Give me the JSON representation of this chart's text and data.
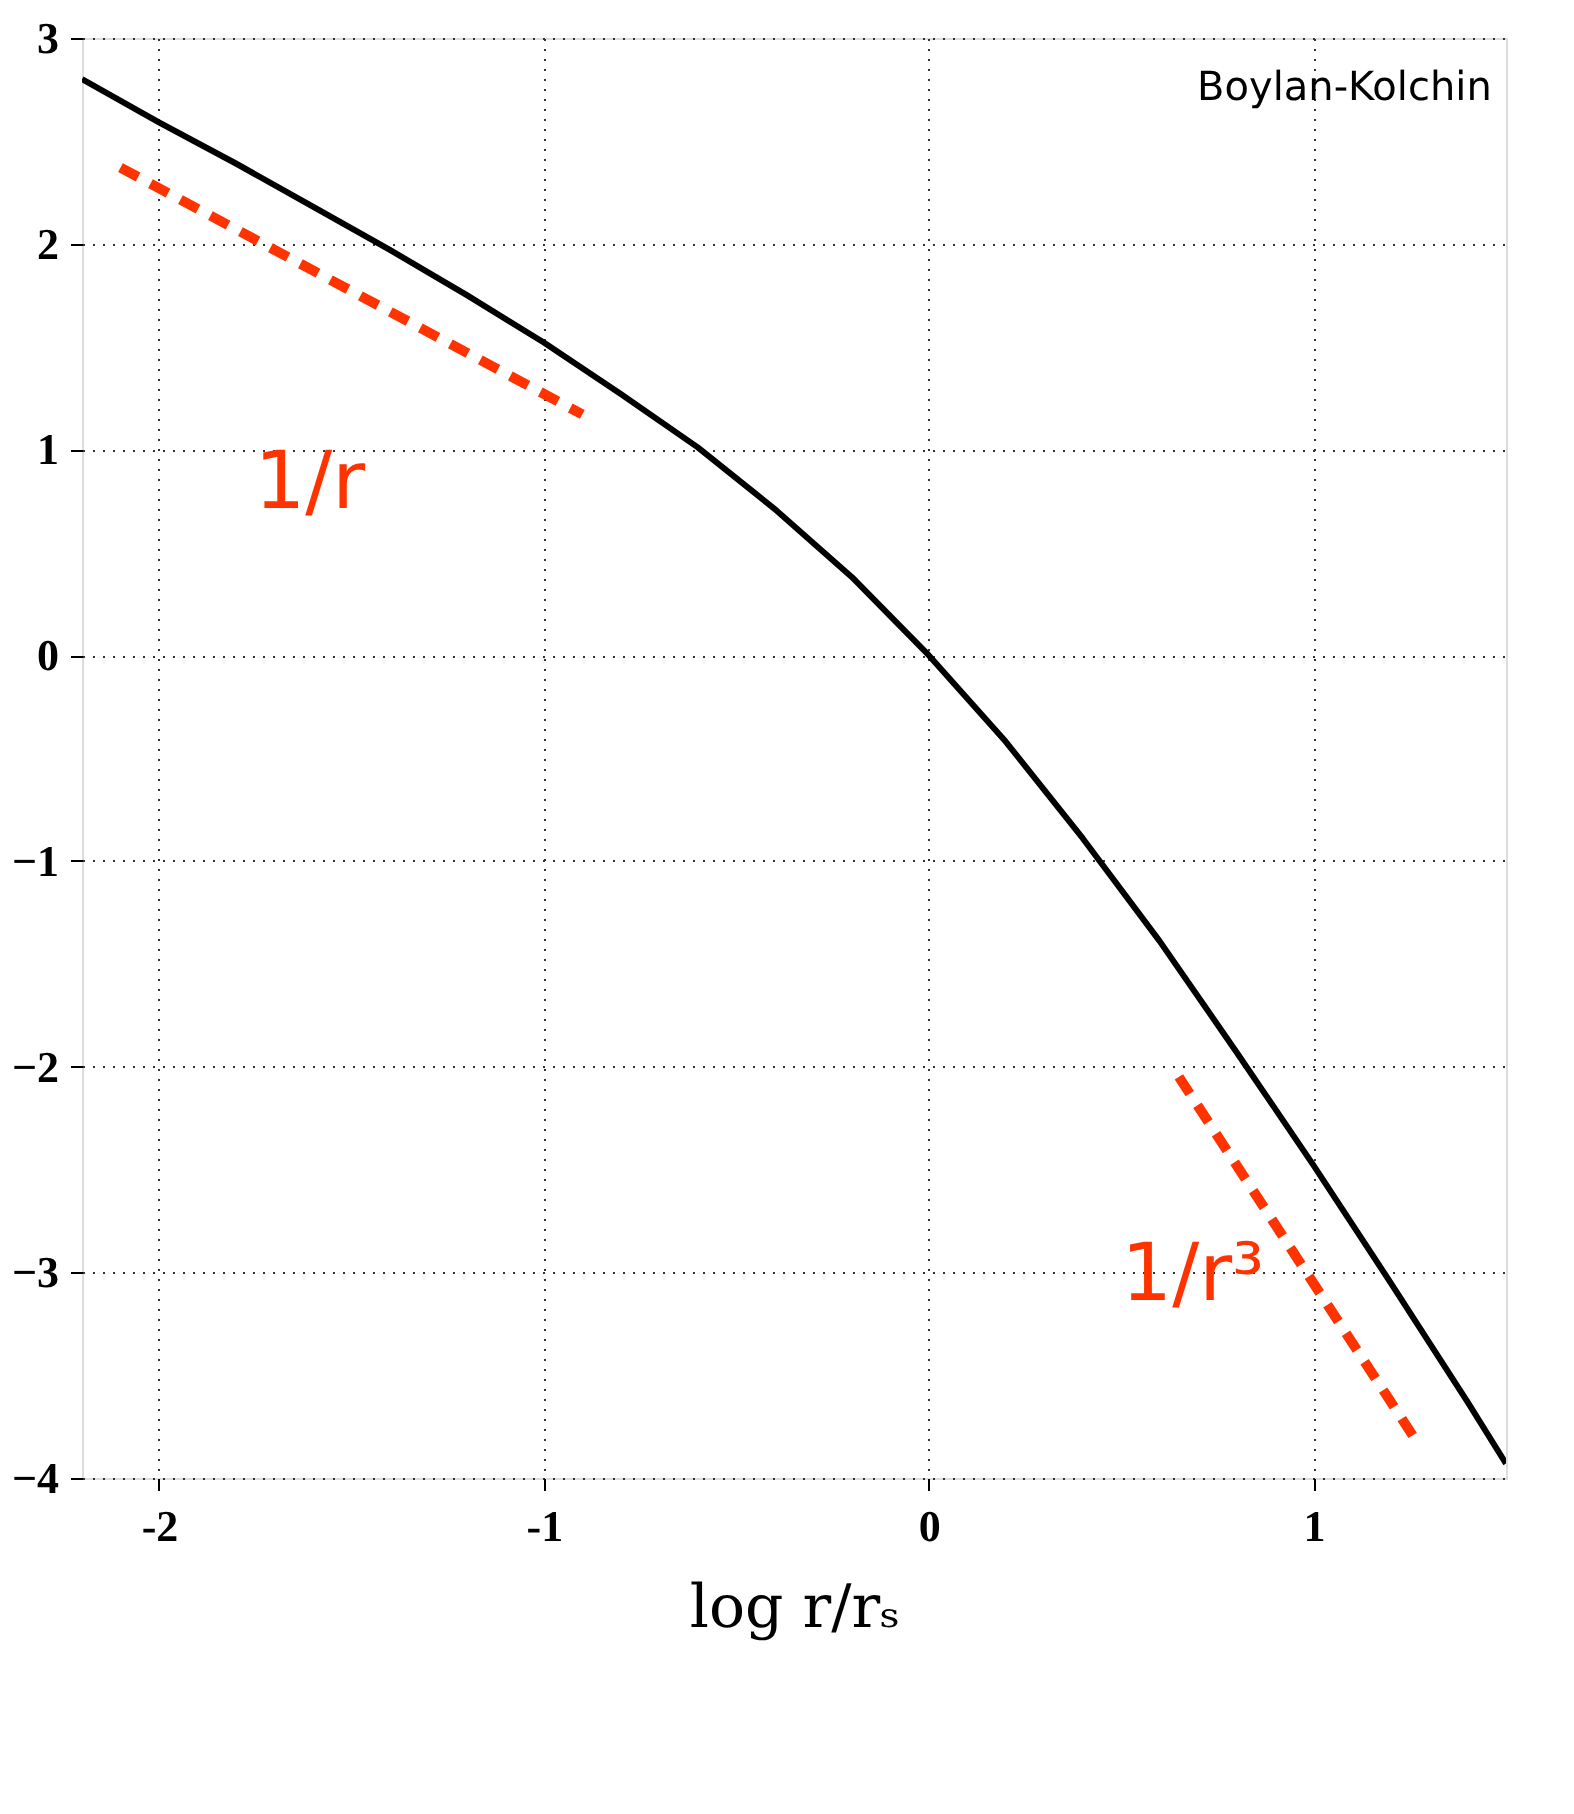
{
  "chart_data": {
    "type": "line",
    "xlabel": "log r/rₛ",
    "series": [
      {
        "color": "#000000",
        "line_style": "solid",
        "x": [
          -2.2,
          -2.0,
          -1.8,
          -1.6,
          -1.4,
          -1.2,
          -1.0,
          -0.8,
          -0.6,
          -0.4,
          -0.2,
          0.0,
          0.2,
          0.4,
          0.6,
          0.8,
          1.0,
          1.2,
          1.4,
          1.5
        ],
        "values": [
          2.8,
          2.59,
          2.39,
          2.18,
          1.97,
          1.75,
          1.52,
          1.27,
          1.01,
          0.71,
          0.38,
          0.0,
          -0.42,
          -0.89,
          -1.39,
          -1.93,
          -2.48,
          -3.05,
          -3.63,
          -3.93
        ]
      },
      {
        "color": "#ff3300",
        "line_style": "dashed",
        "x": [
          -2.1,
          -0.9
        ],
        "values": [
          2.37,
          1.17
        ]
      },
      {
        "color": "#ff3300",
        "line_style": "dashed",
        "x": [
          0.65,
          1.26
        ],
        "values": [
          -2.05,
          -3.8
        ]
      }
    ],
    "xlim": [
      -2.2,
      1.5
    ],
    "xticks": [
      {
        "value": -2,
        "label": "-2"
      },
      {
        "value": -1,
        "label": "-1"
      },
      0,
      1
    ],
    "ylim": [
      -4,
      3
    ],
    "yticks": [
      -4,
      -3,
      -2,
      -1,
      0,
      1,
      2,
      3
    ],
    "grid": true,
    "annotations": [
      "1/r",
      "1/r³",
      "Boylan-Kolchin"
    ]
  }
}
